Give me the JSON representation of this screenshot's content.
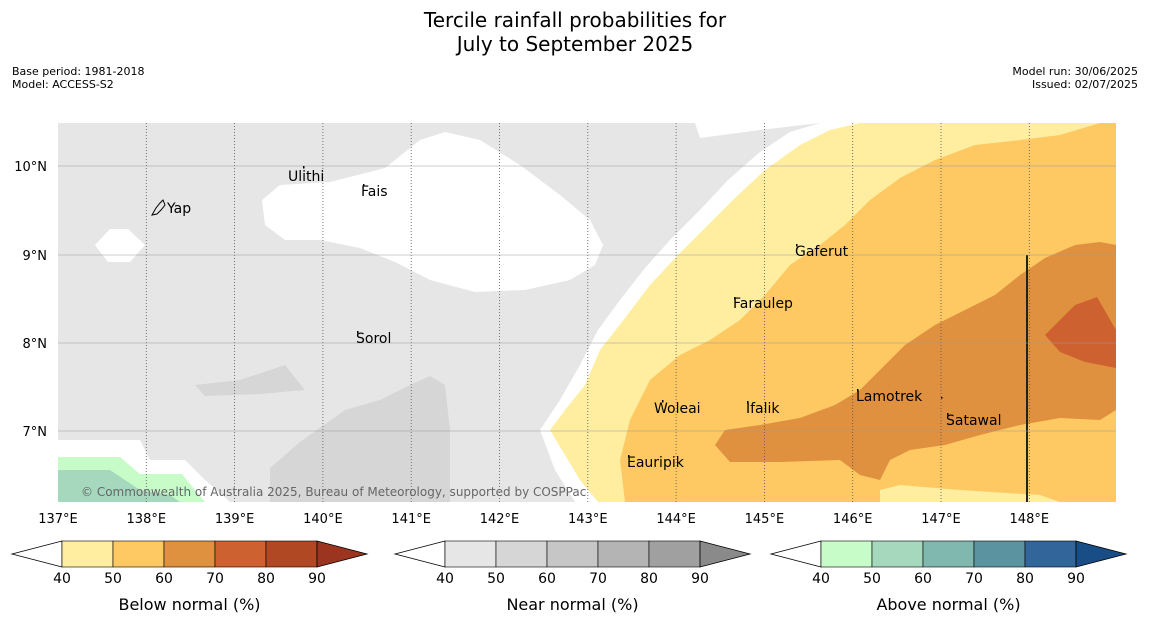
{
  "title_line1": "Tercile rainfall probabilities for",
  "title_line2": "July to September 2025",
  "base_period": "Base period: 1981-2018",
  "model": "Model: ACCESS-S2",
  "model_run": "Model run: 30/06/2025",
  "issued": "Issued: 02/07/2025",
  "copyright": "© Commonwealth of Australia 2025, Bureau of Meteorology, supported by COSPPac",
  "lon_labels": [
    "137°E",
    "138°E",
    "139°E",
    "140°E",
    "141°E",
    "142°E",
    "143°E",
    "144°E",
    "145°E",
    "146°E",
    "147°E",
    "148°E"
  ],
  "lat_labels": [
    "10°N",
    "9°N",
    "8°N",
    "7°N"
  ],
  "places": [
    {
      "name": "Ulithi"
    },
    {
      "name": "Fais"
    },
    {
      "name": "Yap"
    },
    {
      "name": "Gaferut"
    },
    {
      "name": "Faraulep"
    },
    {
      "name": "Sorol"
    },
    {
      "name": "Woleai"
    },
    {
      "name": "Ifalik"
    },
    {
      "name": "Lamotrek"
    },
    {
      "name": "Satawal"
    },
    {
      "name": "Eauripik"
    }
  ],
  "colorbars": [
    {
      "label": "Below normal (%)",
      "ticks": [
        "40",
        "50",
        "60",
        "70",
        "80",
        "90"
      ],
      "colors": [
        "#ffeda0",
        "#fec962",
        "#e0913f",
        "#cd6230",
        "#b04824"
      ],
      "over": "#9c3520"
    },
    {
      "label": "Near normal (%)",
      "ticks": [
        "40",
        "50",
        "60",
        "70",
        "80",
        "90"
      ],
      "colors": [
        "#e6e6e6",
        "#d6d6d6",
        "#c6c6c6",
        "#b4b4b4",
        "#a0a0a0"
      ],
      "over": "#8a8a8a"
    },
    {
      "label": "Above normal (%)",
      "ticks": [
        "40",
        "50",
        "60",
        "70",
        "80",
        "90"
      ],
      "colors": [
        "#c7fcc8",
        "#a6d8bd",
        "#80b7ae",
        "#5b94a0",
        "#326599"
      ],
      "over": "#184d85"
    }
  ]
}
